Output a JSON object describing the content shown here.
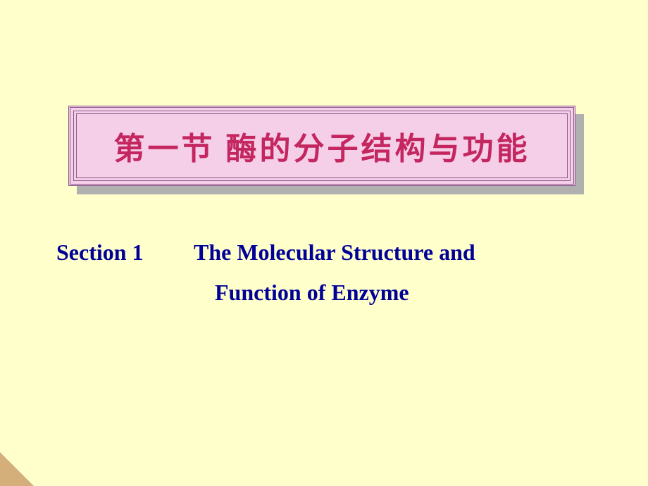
{
  "slide": {
    "background_color": "#ffffcc",
    "corner_color": "#d4af7a"
  },
  "title_box": {
    "background_color": "#f5cee8",
    "border_color": "#8b5a8b",
    "shadow_color": "#b0b0b0",
    "text": "第一节  酶的分子结构与功能",
    "text_color": "#c4265f",
    "font_size": 44
  },
  "subtitle": {
    "section_label": "Section 1",
    "line1_text": "The Molecular Structure and",
    "line2_text": "Function of Enzyme",
    "text_color": "#000099",
    "font_size": 32
  }
}
